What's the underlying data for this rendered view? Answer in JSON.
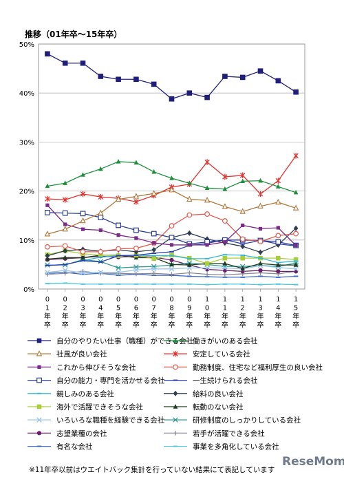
{
  "chart_data": {
    "type": "line",
    "title": "推移（01年卒～15年卒）",
    "xlabel": "",
    "ylabel": "",
    "ylim": [
      0,
      50
    ],
    "yticks": [
      "0%",
      "10%",
      "20%",
      "30%",
      "40%",
      "50%"
    ],
    "grid": true,
    "legend_position": "bottom",
    "categories": [
      [
        "0",
        "1",
        "年",
        "卒"
      ],
      [
        "0",
        "2",
        "年",
        "卒"
      ],
      [
        "0",
        "3",
        "年",
        "卒"
      ],
      [
        "0",
        "4",
        "年",
        "卒"
      ],
      [
        "0",
        "5",
        "年",
        "卒"
      ],
      [
        "0",
        "6",
        "年",
        "卒"
      ],
      [
        "0",
        "7",
        "年",
        "卒"
      ],
      [
        "0",
        "8",
        "年",
        "卒"
      ],
      [
        "0",
        "9",
        "年",
        "卒"
      ],
      [
        "1",
        "0",
        "年",
        "卒"
      ],
      [
        "1",
        "1",
        "年",
        "卒"
      ],
      [
        "1",
        "2",
        "年",
        "卒"
      ],
      [
        "1",
        "3",
        "年",
        "卒"
      ],
      [
        "1",
        "4",
        "年",
        "卒"
      ],
      [
        "1",
        "5",
        "年",
        "卒"
      ]
    ],
    "series": [
      {
        "name": "自分のやりたい仕事（職種）ができる会社",
        "color": "#1f1f7a",
        "marker": "square-filled",
        "values": [
          48.0,
          46.1,
          46.1,
          43.4,
          42.8,
          42.8,
          41.8,
          38.8,
          40.0,
          39.1,
          43.4,
          43.2,
          44.5,
          42.5,
          40.2
        ]
      },
      {
        "name": "働きがいのある会社",
        "color": "#1e8f3a",
        "marker": "triangle-filled",
        "values": [
          21.0,
          21.6,
          23.3,
          24.5,
          26.0,
          25.8,
          23.9,
          22.6,
          21.6,
          20.6,
          20.4,
          22.0,
          22.1,
          20.9,
          19.7
        ]
      },
      {
        "name": "社風が良い会社",
        "color": "#b3783a",
        "marker": "triangle-open",
        "values": [
          11.2,
          12.2,
          13.9,
          15.5,
          18.3,
          18.9,
          19.5,
          20.2,
          18.3,
          18.1,
          16.8,
          15.8,
          16.9,
          17.7,
          16.5
        ]
      },
      {
        "name": "安定している会社",
        "color": "#e0342f",
        "marker": "star",
        "values": [
          18.4,
          18.2,
          19.4,
          18.8,
          18.5,
          17.8,
          19.1,
          20.8,
          21.4,
          25.9,
          22.9,
          23.2,
          19.4,
          22.1,
          27.2
        ]
      },
      {
        "name": "これから伸びそうな会社",
        "color": "#7b2a8a",
        "marker": "square-small",
        "values": [
          17.1,
          13.2,
          12.2,
          12.0,
          11.0,
          10.4,
          9.4,
          9.0,
          9.0,
          9.0,
          9.6,
          13.0,
          12.3,
          12.5,
          8.9
        ]
      },
      {
        "name": "勤務制度、住宅など福利厚生の良い会社",
        "color": "#e05a4f",
        "marker": "circle-open",
        "values": [
          8.6,
          8.8,
          7.6,
          7.6,
          8.2,
          8.3,
          9.3,
          12.9,
          15.1,
          15.3,
          13.9,
          10.2,
          9.7,
          10.9,
          11.3
        ]
      },
      {
        "name": "自分の能力・専門を活かせる会社",
        "color": "#2a3d8f",
        "marker": "square-open",
        "values": [
          15.6,
          15.5,
          15.4,
          14.6,
          13.0,
          12.0,
          11.3,
          10.5,
          9.2,
          9.6,
          10.0,
          10.0,
          9.9,
          9.6,
          8.9
        ]
      },
      {
        "name": "一生続けられる会社",
        "color": "#2a3db0",
        "marker": "dash",
        "values": [
          4.8,
          5.0,
          5.8,
          5.5,
          6.8,
          6.9,
          7.3,
          7.6,
          8.9,
          9.3,
          10.1,
          9.2,
          9.9,
          9.2,
          8.8
        ]
      },
      {
        "name": "親しみのある会社",
        "color": "#33b8d6",
        "marker": "dash",
        "values": [
          4.8,
          5.0,
          5.8,
          6.5,
          6.8,
          6.9,
          6.8,
          6.8,
          6.2,
          6.2,
          7.0,
          6.9,
          6.3,
          5.4,
          5.7
        ]
      },
      {
        "name": "給料の良い会社",
        "color": "#2f3f4f",
        "marker": "diamond",
        "values": [
          6.8,
          7.8,
          8.1,
          7.7,
          8.0,
          7.6,
          8.0,
          10.5,
          11.4,
          10.2,
          9.4,
          8.7,
          7.5,
          9.0,
          12.4
        ]
      },
      {
        "name": "海外で活躍できそうな会社",
        "color": "#a8cf3a",
        "marker": "square-filled",
        "values": [
          7.0,
          7.8,
          7.2,
          6.9,
          6.8,
          6.9,
          6.2,
          6.9,
          6.3,
          5.2,
          6.3,
          6.3,
          6.3,
          6.3,
          6.0
        ]
      },
      {
        "name": "転勤のない会社",
        "color": "#1f3a1f",
        "marker": "triangle-filled",
        "values": [
          6.1,
          6.4,
          6.4,
          6.9,
          6.9,
          6.4,
          6.4,
          5.0,
          4.9,
          5.2,
          5.2,
          4.2,
          5.2,
          4.9,
          4.9
        ]
      },
      {
        "name": "いろいろな職種を経験できる会社",
        "color": "#9cc5e8",
        "marker": "x",
        "values": [
          3.4,
          3.8,
          3.3,
          3.4,
          3.4,
          3.9,
          4.1,
          4.1,
          4.3,
          4.3,
          4.3,
          4.1,
          4.8,
          4.4,
          4.1
        ]
      },
      {
        "name": "研修制度のしっかりしている会社",
        "color": "#2e9a90",
        "marker": "asterisk",
        "values": [
          4.9,
          4.9,
          6.0,
          5.6,
          4.3,
          4.5,
          4.6,
          4.9,
          5.3,
          5.0,
          4.6,
          4.6,
          4.8,
          4.6,
          5.3
        ]
      },
      {
        "name": "志望業種の会社",
        "color": "#6a1f6a",
        "marker": "circle-filled",
        "values": [
          6.0,
          6.2,
          6.4,
          6.7,
          6.5,
          6.7,
          6.5,
          5.9,
          4.9,
          4.0,
          3.8,
          3.6,
          3.8,
          3.6,
          3.6
        ]
      },
      {
        "name": "若手が活躍できる会社",
        "color": "#8a8a9a",
        "marker": "plus",
        "values": [
          3.0,
          3.2,
          3.6,
          3.2,
          3.2,
          3.1,
          3.2,
          3.0,
          3.3,
          3.0,
          2.9,
          3.1,
          3.3,
          3.1,
          3.6
        ]
      },
      {
        "name": "有名な会社",
        "color": "#3d6bc4",
        "marker": "dash",
        "values": [
          3.2,
          3.4,
          3.0,
          3.2,
          2.8,
          3.0,
          2.8,
          2.8,
          2.6,
          2.5,
          2.4,
          2.4,
          2.6,
          2.4,
          2.6
        ]
      },
      {
        "name": "事業を多角化している会社",
        "color": "#4fc8dc",
        "marker": "dash",
        "values": [
          1.1,
          1.2,
          1.0,
          1.0,
          1.0,
          1.0,
          1.0,
          1.0,
          1.0,
          0.9,
          1.0,
          1.0,
          0.9,
          1.0,
          0.9
        ]
      }
    ]
  },
  "footnote": "※11年卒以前はウエイトバック集計を行っていない結果にて表記しています",
  "watermark": "ReseMom"
}
